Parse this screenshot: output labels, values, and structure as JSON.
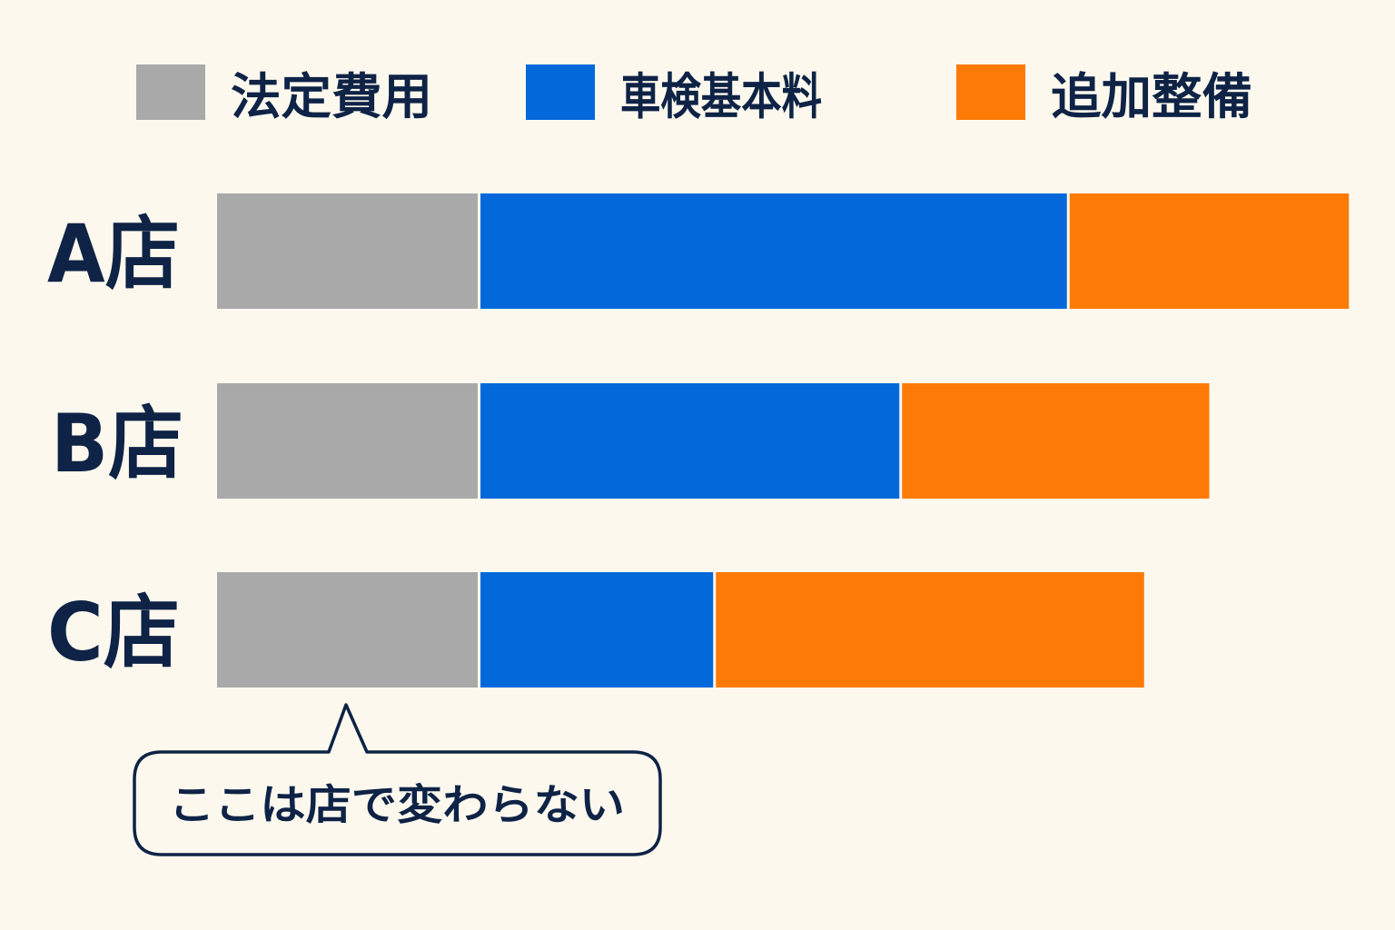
{
  "colors": {
    "background": "#FCF8EE",
    "text": "#0E2345"
  },
  "chart_data": {
    "type": "bar",
    "orientation": "horizontal",
    "stacked": true,
    "title": "",
    "xlabel": "",
    "ylabel": "",
    "grid": false,
    "legend_position": "top",
    "categories": [
      "A店",
      "B店",
      "C店"
    ],
    "series": [
      {
        "name": "法定費用",
        "color": "#A9A9AA",
        "values": [
          28,
          28,
          28
        ]
      },
      {
        "name": "車検基本料",
        "color": "#0369DB",
        "values": [
          63,
          45,
          25
        ]
      },
      {
        "name": "追加整備",
        "color": "#FE7A07",
        "values": [
          30,
          33,
          46
        ]
      }
    ],
    "annotation": {
      "text": "ここは店で変わらない",
      "target_series": "法定費用"
    }
  }
}
